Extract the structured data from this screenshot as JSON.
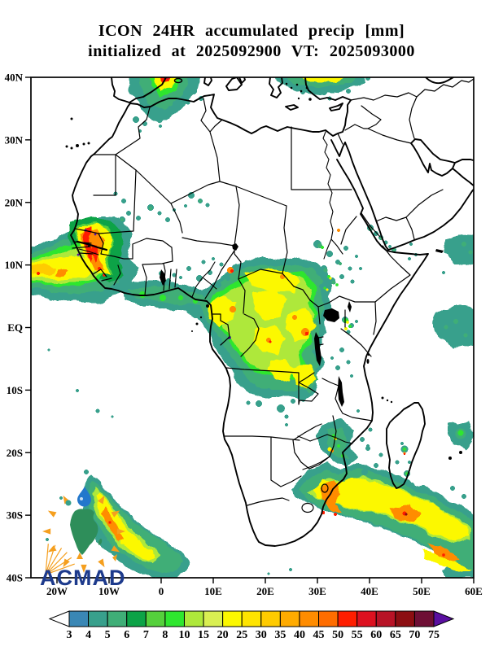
{
  "title": {
    "line1": "ICON 24HR accumulated precip [mm]",
    "line2": "initialized at 2025092900 VT: 2025093000"
  },
  "axes": {
    "lat_ticks": [
      "40N",
      "30N",
      "20N",
      "10N",
      "EQ",
      "10S",
      "20S",
      "30S",
      "40S"
    ],
    "lon_ticks": [
      "20W",
      "10W",
      "0",
      "10E",
      "20E",
      "30E",
      "40E",
      "50E",
      "60E"
    ]
  },
  "colorbar": {
    "boundary_labels": [
      "3",
      "4",
      "5",
      "6",
      "7",
      "8",
      "10",
      "15",
      "20",
      "25",
      "30",
      "35",
      "40",
      "45",
      "50",
      "55",
      "60",
      "65",
      "70",
      "75"
    ],
    "cell_colors": [
      "#3a87b5",
      "#38a08c",
      "#3fae77",
      "#0ca347",
      "#55d03c",
      "#2fe62f",
      "#aee83b",
      "#d9ef52",
      "#fcf800",
      "#ffe400",
      "#ffcb00",
      "#ffab00",
      "#ff8c00",
      "#ff6d00",
      "#ff1e00",
      "#dd1120",
      "#b81326",
      "#8c0e12",
      "#6e0f35"
    ],
    "under_color": "#ffffff",
    "over_color": "#5a0fa0"
  },
  "logo": {
    "text": "ACMAD",
    "text_color": "#1d3a8c",
    "africa_color": "#2e8e5a",
    "accent_color": "#f59f1e",
    "drop_color": "#2277cc"
  },
  "map": {
    "background": "#ffffff",
    "line_color": "#000000"
  }
}
